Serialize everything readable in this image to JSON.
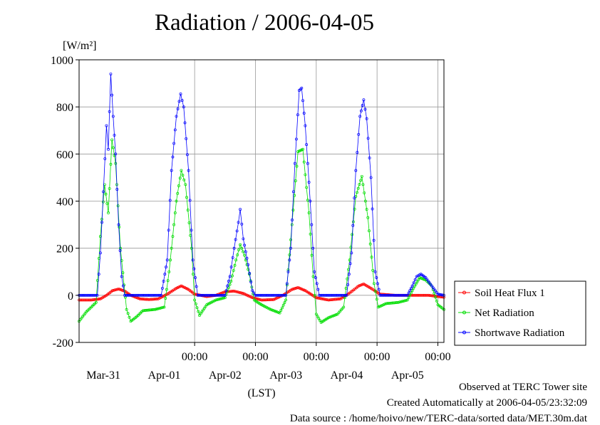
{
  "chart_data": {
    "type": "line",
    "title": "Radiation / 2006-04-05",
    "ylabel_unit": "[W/m²]",
    "xlabel": "(LST)",
    "ylim": [
      -200,
      1000
    ],
    "yticks": [
      "-200",
      "0",
      "200",
      "400",
      "600",
      "800",
      "1000"
    ],
    "x_time_ticks": [
      "00:00",
      "00:00",
      "00:00",
      "00:00",
      "00:00"
    ],
    "x_date_labels": [
      "Mar-31",
      "Apr-01",
      "Apr-02",
      "Apr-03",
      "Apr-04",
      "Apr-05"
    ],
    "x_range_days": [
      -0.9,
      5.1
    ],
    "grid": true,
    "legend_position": "right",
    "series": [
      {
        "name": "Soil Heat Flux 1",
        "color": "#ff0000",
        "points": [
          [
            -0.9,
            -20
          ],
          [
            -0.7,
            -20
          ],
          [
            -0.55,
            -15
          ],
          [
            -0.45,
            0
          ],
          [
            -0.35,
            20
          ],
          [
            -0.25,
            27
          ],
          [
            -0.15,
            18
          ],
          [
            -0.05,
            0
          ],
          [
            0.1,
            -15
          ],
          [
            0.25,
            -18
          ],
          [
            0.4,
            -15
          ],
          [
            0.55,
            5
          ],
          [
            0.7,
            30
          ],
          [
            0.78,
            40
          ],
          [
            0.9,
            25
          ],
          [
            1.0,
            5
          ],
          [
            1.2,
            -5
          ],
          [
            1.35,
            0
          ],
          [
            1.5,
            15
          ],
          [
            1.65,
            18
          ],
          [
            1.8,
            8
          ],
          [
            1.95,
            -10
          ],
          [
            2.1,
            -20
          ],
          [
            2.3,
            -18
          ],
          [
            2.45,
            0
          ],
          [
            2.6,
            25
          ],
          [
            2.7,
            33
          ],
          [
            2.82,
            20
          ],
          [
            3.0,
            -10
          ],
          [
            3.2,
            -20
          ],
          [
            3.4,
            -15
          ],
          [
            3.55,
            10
          ],
          [
            3.7,
            40
          ],
          [
            3.78,
            48
          ],
          [
            3.9,
            30
          ],
          [
            4.05,
            5
          ],
          [
            4.3,
            0
          ],
          [
            4.6,
            0
          ],
          [
            4.85,
            0
          ],
          [
            5.0,
            -5
          ],
          [
            5.1,
            -8
          ]
        ]
      },
      {
        "name": "Net Radiation",
        "color": "#00dd00",
        "points": [
          [
            -0.9,
            -110
          ],
          [
            -0.78,
            -70
          ],
          [
            -0.7,
            -50
          ],
          [
            -0.62,
            -30
          ],
          [
            -0.55,
            250
          ],
          [
            -0.48,
            470
          ],
          [
            -0.42,
            350
          ],
          [
            -0.36,
            660
          ],
          [
            -0.3,
            560
          ],
          [
            -0.22,
            200
          ],
          [
            -0.12,
            -60
          ],
          [
            -0.05,
            -110
          ],
          [
            0.05,
            -90
          ],
          [
            0.15,
            -65
          ],
          [
            0.35,
            -60
          ],
          [
            0.5,
            -50
          ],
          [
            0.58,
            100
          ],
          [
            0.7,
            400
          ],
          [
            0.78,
            530
          ],
          [
            0.85,
            470
          ],
          [
            0.95,
            200
          ],
          [
            1.0,
            -20
          ],
          [
            1.08,
            -85
          ],
          [
            1.2,
            -40
          ],
          [
            1.35,
            -20
          ],
          [
            1.5,
            -10
          ],
          [
            1.6,
            60
          ],
          [
            1.68,
            150
          ],
          [
            1.75,
            215
          ],
          [
            1.82,
            170
          ],
          [
            1.9,
            90
          ],
          [
            1.98,
            -20
          ],
          [
            2.1,
            -40
          ],
          [
            2.25,
            -60
          ],
          [
            2.4,
            -75
          ],
          [
            2.5,
            -20
          ],
          [
            2.6,
            300
          ],
          [
            2.7,
            610
          ],
          [
            2.78,
            620
          ],
          [
            2.88,
            350
          ],
          [
            2.95,
            80
          ],
          [
            3.0,
            -80
          ],
          [
            3.08,
            -115
          ],
          [
            3.2,
            -95
          ],
          [
            3.35,
            -80
          ],
          [
            3.45,
            -50
          ],
          [
            3.55,
            150
          ],
          [
            3.65,
            420
          ],
          [
            3.75,
            505
          ],
          [
            3.85,
            330
          ],
          [
            3.95,
            50
          ],
          [
            4.02,
            -50
          ],
          [
            4.15,
            -35
          ],
          [
            4.35,
            -30
          ],
          [
            4.5,
            -20
          ],
          [
            4.6,
            30
          ],
          [
            4.7,
            75
          ],
          [
            4.8,
            65
          ],
          [
            4.9,
            40
          ],
          [
            5.0,
            -40
          ],
          [
            5.1,
            -60
          ]
        ]
      },
      {
        "name": "Shortwave Radiation",
        "color": "#0000ff",
        "points": [
          [
            -0.9,
            0
          ],
          [
            -0.6,
            0
          ],
          [
            -0.55,
            180
          ],
          [
            -0.5,
            440
          ],
          [
            -0.45,
            720
          ],
          [
            -0.42,
            620
          ],
          [
            -0.38,
            940
          ],
          [
            -0.34,
            760
          ],
          [
            -0.3,
            600
          ],
          [
            -0.25,
            300
          ],
          [
            -0.2,
            80
          ],
          [
            -0.15,
            0
          ],
          [
            0.45,
            0
          ],
          [
            0.55,
            150
          ],
          [
            0.62,
            530
          ],
          [
            0.7,
            760
          ],
          [
            0.77,
            855
          ],
          [
            0.82,
            800
          ],
          [
            0.9,
            530
          ],
          [
            0.97,
            150
          ],
          [
            1.05,
            0
          ],
          [
            1.5,
            0
          ],
          [
            1.58,
            80
          ],
          [
            1.65,
            200
          ],
          [
            1.72,
            310
          ],
          [
            1.75,
            365
          ],
          [
            1.8,
            240
          ],
          [
            1.88,
            130
          ],
          [
            1.95,
            20
          ],
          [
            2.0,
            0
          ],
          [
            2.5,
            0
          ],
          [
            2.58,
            200
          ],
          [
            2.65,
            560
          ],
          [
            2.72,
            870
          ],
          [
            2.76,
            880
          ],
          [
            2.82,
            720
          ],
          [
            2.9,
            400
          ],
          [
            2.97,
            100
          ],
          [
            3.05,
            0
          ],
          [
            3.5,
            0
          ],
          [
            3.58,
            180
          ],
          [
            3.65,
            530
          ],
          [
            3.72,
            760
          ],
          [
            3.78,
            830
          ],
          [
            3.83,
            750
          ],
          [
            3.9,
            500
          ],
          [
            3.97,
            100
          ],
          [
            4.05,
            0
          ],
          [
            4.5,
            0
          ],
          [
            4.58,
            40
          ],
          [
            4.65,
            80
          ],
          [
            4.72,
            90
          ],
          [
            4.8,
            75
          ],
          [
            4.9,
            40
          ],
          [
            5.0,
            5
          ],
          [
            5.1,
            0
          ]
        ]
      }
    ]
  },
  "footer": {
    "site": "Observed at TERC Tower site",
    "created": "Created Automatically at 2006-04-05/23:32:09",
    "source": "Data source : /home/hoivo/new/TERC-data/sorted  data/MET.30m.dat"
  }
}
